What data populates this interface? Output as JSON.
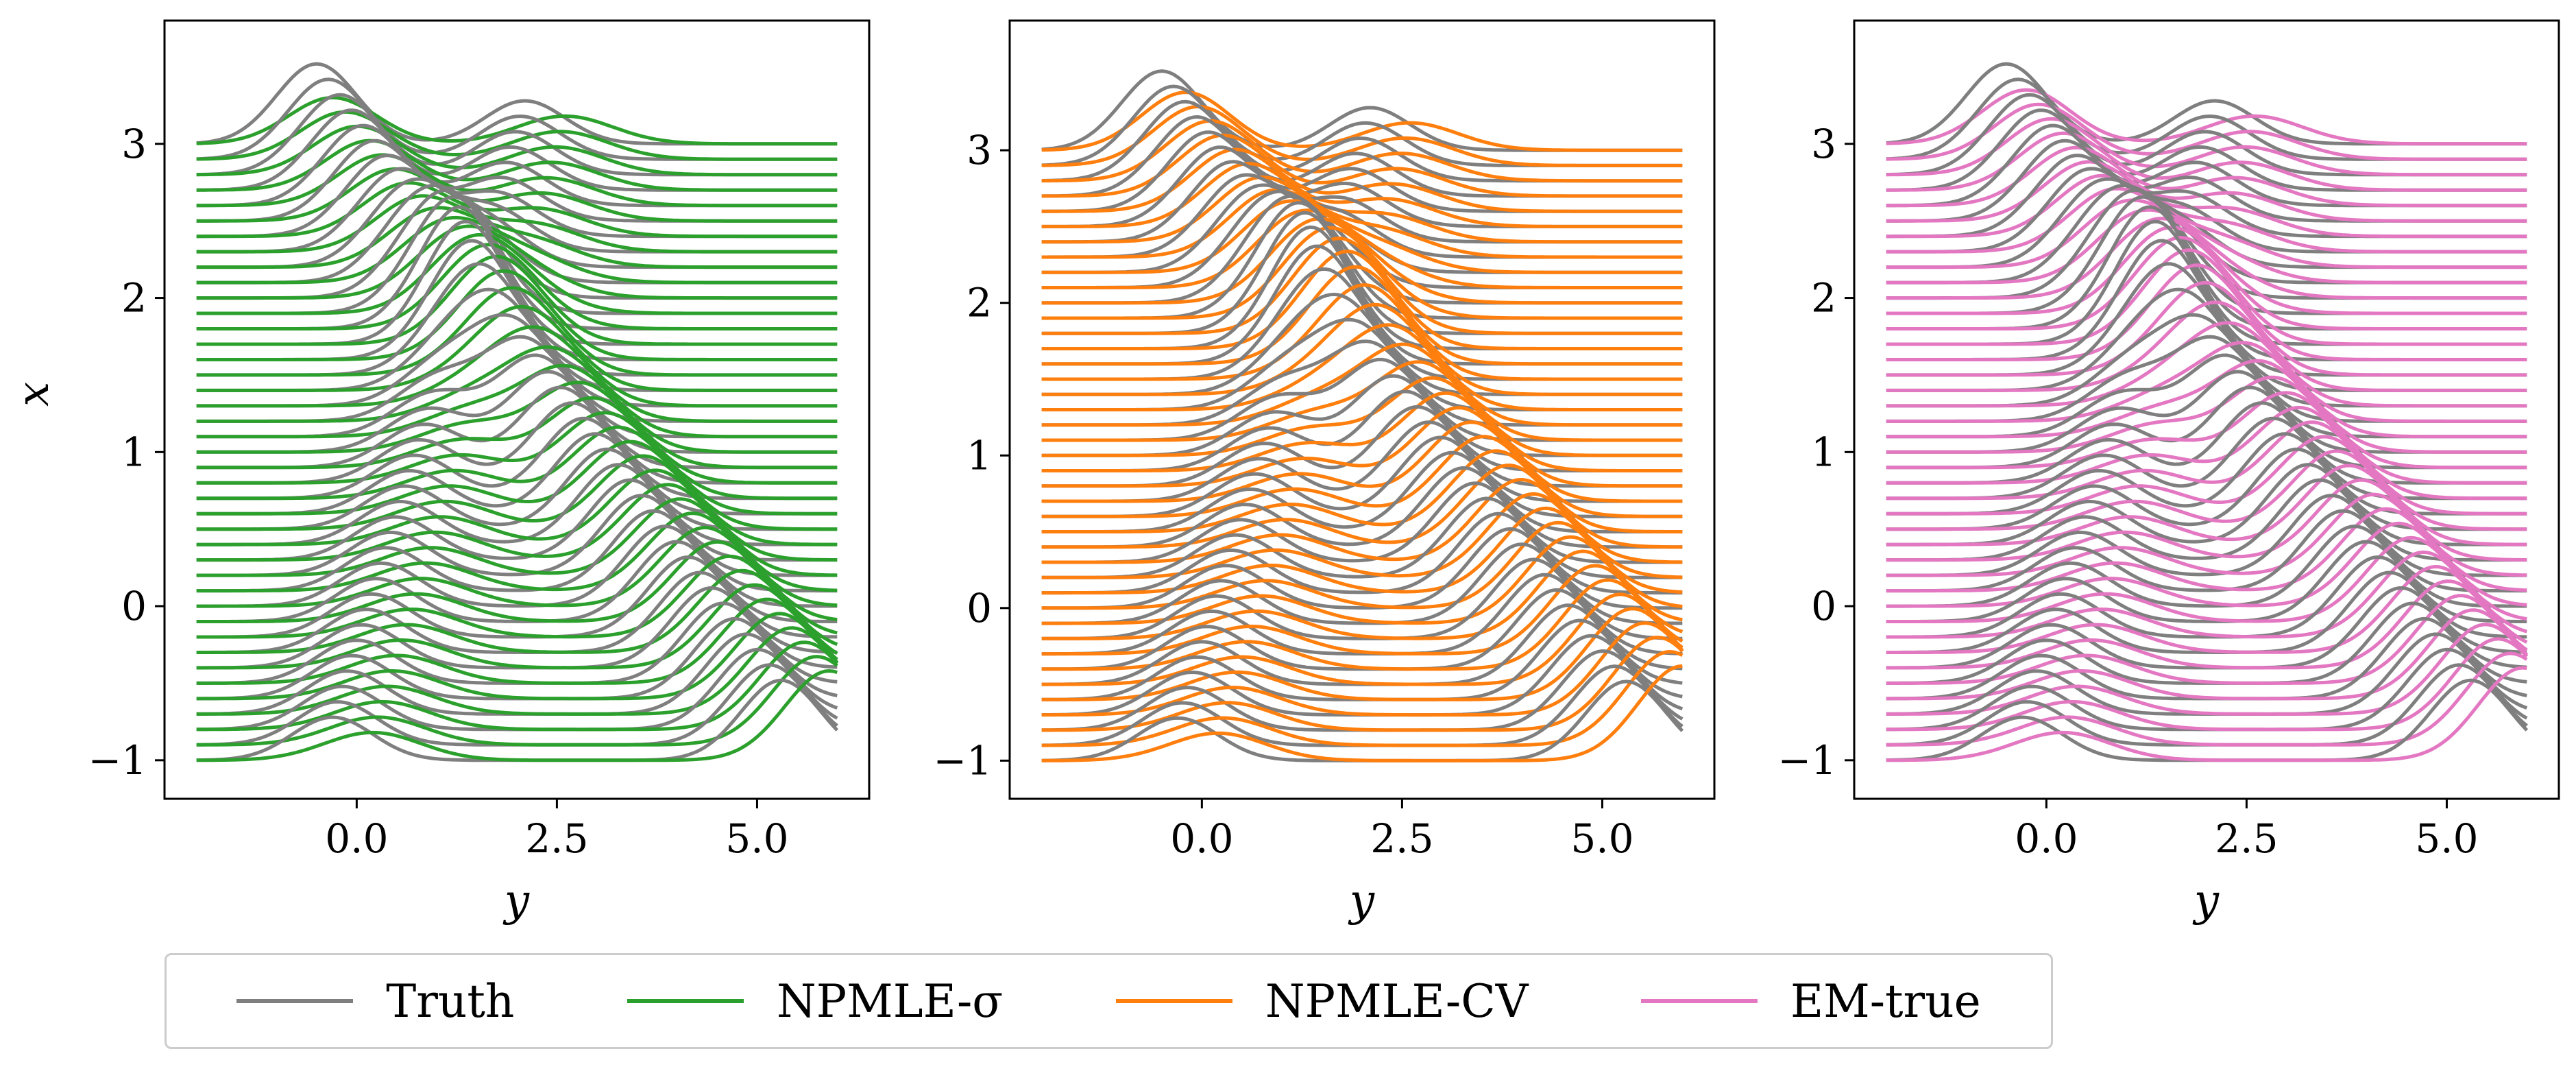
{
  "chart_data": [
    {
      "type": "line",
      "panel": "left",
      "xlabel": "y",
      "ylabel": "x",
      "xlim": [
        -2.4,
        6.4
      ],
      "ylim": [
        -1.25,
        3.8
      ],
      "xticks": [
        0.0,
        2.5,
        5.0
      ],
      "xtick_labels": [
        "0.0",
        "2.5",
        "5.0"
      ],
      "yticks": [
        -1,
        0,
        1,
        2,
        3
      ],
      "ytick_labels": [
        "−1",
        "0",
        "1",
        "2",
        "3"
      ],
      "curve_x_range": [
        -2.0,
        6.0
      ],
      "curve_offsets_range": [
        -1.0,
        3.0
      ],
      "curve_count": 41,
      "grid": false,
      "series": [
        {
          "name": "Truth",
          "color": "#7f7f7f"
        },
        {
          "name": "NPMLE-σ",
          "color": "#2ca02c"
        }
      ]
    },
    {
      "type": "line",
      "panel": "middle",
      "xlabel": "y",
      "ylabel": "",
      "xlim": [
        -2.4,
        6.4
      ],
      "ylim": [
        -1.25,
        3.85
      ],
      "xticks": [
        0.0,
        2.5,
        5.0
      ],
      "xtick_labels": [
        "0.0",
        "2.5",
        "5.0"
      ],
      "yticks": [
        -1,
        0,
        1,
        2,
        3
      ],
      "ytick_labels": [
        "−1",
        "0",
        "1",
        "2",
        "3"
      ],
      "curve_x_range": [
        -2.0,
        6.0
      ],
      "curve_offsets_range": [
        -1.0,
        3.0
      ],
      "curve_count": 41,
      "grid": false,
      "series": [
        {
          "name": "Truth",
          "color": "#7f7f7f"
        },
        {
          "name": "NPMLE-CV",
          "color": "#ff7f0e"
        }
      ]
    },
    {
      "type": "line",
      "panel": "right",
      "xlabel": "y",
      "ylabel": "",
      "xlim": [
        -2.4,
        6.4
      ],
      "ylim": [
        -1.25,
        3.8
      ],
      "xticks": [
        0.0,
        2.5,
        5.0
      ],
      "xtick_labels": [
        "0.0",
        "2.5",
        "5.0"
      ],
      "yticks": [
        -1,
        0,
        1,
        2,
        3
      ],
      "ytick_labels": [
        "−1",
        "0",
        "1",
        "2",
        "3"
      ],
      "curve_x_range": [
        -2.0,
        6.0
      ],
      "curve_offsets_range": [
        -1.0,
        3.0
      ],
      "curve_count": 41,
      "grid": false,
      "series": [
        {
          "name": "Truth",
          "color": "#7f7f7f"
        },
        {
          "name": "EM-true",
          "color": "#e377c2"
        }
      ]
    }
  ],
  "legend": {
    "placement": "bottom",
    "items": [
      {
        "label": "Truth",
        "color": "#7f7f7f"
      },
      {
        "label": "NPMLE-σ",
        "color": "#2ca02c"
      },
      {
        "label": "NPMLE-CV",
        "color": "#ff7f0e"
      },
      {
        "label": "EM-true",
        "color": "#e377c2"
      }
    ]
  }
}
